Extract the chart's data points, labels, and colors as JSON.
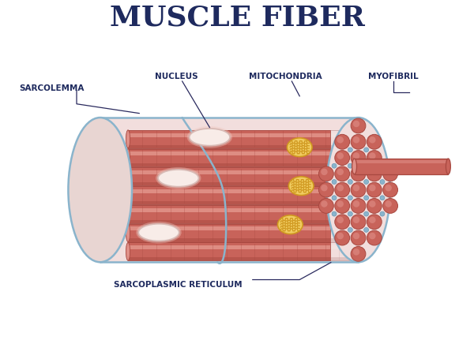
{
  "title": "MUSCLE FIBER",
  "title_fontsize": 26,
  "title_color": "#1e2a5e",
  "title_weight": "bold",
  "background_color": "#ffffff",
  "labels": {
    "sarcolemma": "SARCOLEMMA",
    "nucleus": "NUCLEUS",
    "mitochondria": "MITOCHONDRIA",
    "myofibril": "MYOFIBRIL",
    "sarcoplasmic_reticulum": "SARCOPLASMIC RETICULUM"
  },
  "label_fontsize": 7.5,
  "label_color": "#1e2a5e",
  "label_weight": "bold",
  "colors": {
    "outer_fill_light": "#f2dedd",
    "outer_fill_left": "#eddbd9",
    "outer_stroke": "#8ab4cc",
    "tube_fill": "#c8635a",
    "tube_dark": "#a84840",
    "tube_light": "#e09088",
    "tube_highlight": "#eeaaa0",
    "nucleus_fill": "#f8ece8",
    "nucleus_stroke": "#d8bab5",
    "mito_outer": "#e8b830",
    "mito_inner": "#d09820",
    "mito_bg": "#f0cc60",
    "cut_circle_fill": "#c8635a",
    "cut_circle_stroke": "#a84840",
    "cut_circle_light": "#e09088",
    "reticulum_dot": "#8ab4cc",
    "reticulum_dot_stroke": "#5890b0",
    "fibril_fill": "#c8635a",
    "fibril_stroke": "#a84840",
    "fibril_light": "#e09088",
    "line_color": "#2a2a5e"
  }
}
